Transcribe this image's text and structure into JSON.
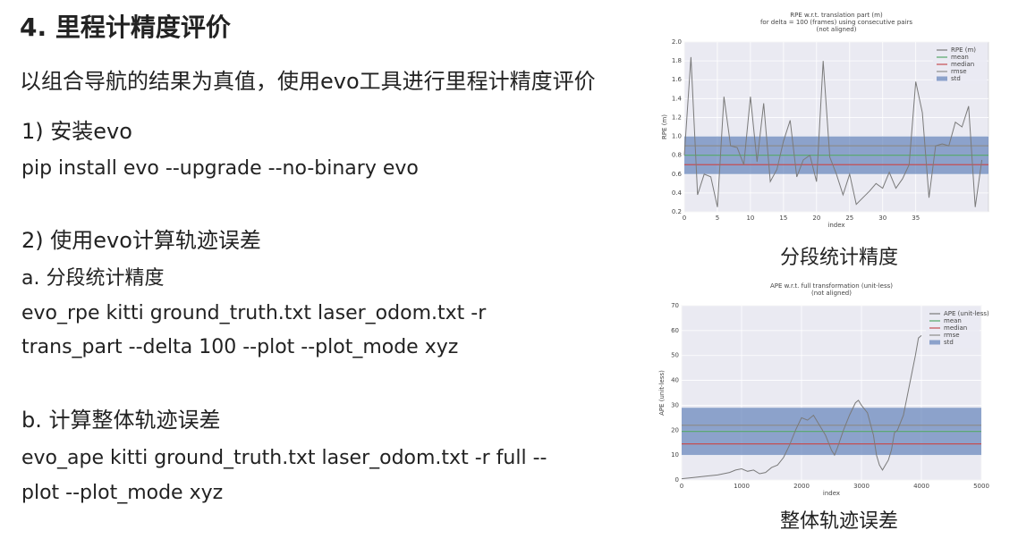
{
  "slide": {
    "title": "4. 里程计精度评价",
    "lines": [
      "以组合导航的结果为真值，使用evo工具进行里程计精度评价",
      "1) 安装evo",
      "pip install evo --upgrade --no-binary evo",
      "2) 使用evo计算轨迹误差",
      "a. 分段统计精度",
      "evo_rpe kitti ground_truth.txt laser_odom.txt -r",
      "trans_part --delta 100 --plot --plot_mode xyz",
      "b. 计算整体轨迹误差",
      "evo_ape kitti ground_truth.txt laser_odom.txt -r full --",
      "plot --plot_mode xyz"
    ],
    "captions": [
      "分段统计精度",
      "整体轨迹误差"
    ]
  },
  "chart_data": [
    {
      "type": "line",
      "title": [
        "RPE w.r.t. translation part (m)",
        "for delta = 100 (frames) using consecutive pairs",
        "(not aligned)"
      ],
      "xlabel": "index",
      "ylabel": "RPE (m)",
      "xlim": [
        0,
        46
      ],
      "xticks": [
        0,
        5,
        10,
        15,
        20,
        25,
        30,
        35
      ],
      "ylim": [
        0.2,
        2.0
      ],
      "yticks": [
        0.2,
        0.4,
        0.6,
        0.8,
        {
          "value": 1,
          "label": "1.0"
        },
        1.2,
        1.4,
        1.6,
        1.8,
        {
          "value": 2,
          "label": "2.0"
        }
      ],
      "grid": true,
      "series": [
        {
          "name": "RPE (m)",
          "color": "#7a7a7a",
          "x": [
            0,
            1,
            2,
            3,
            4,
            5,
            6,
            7,
            8,
            9,
            10,
            11,
            12,
            13,
            14,
            15,
            16,
            17,
            18,
            19,
            20,
            21,
            22,
            23,
            24,
            25,
            26,
            27,
            28,
            29,
            30,
            31,
            32,
            33,
            34,
            35,
            36,
            37,
            38,
            39,
            40,
            41,
            42,
            43,
            44,
            45
          ],
          "values": [
            0.8,
            1.84,
            0.38,
            0.6,
            0.57,
            0.25,
            1.42,
            0.9,
            0.88,
            0.7,
            1.42,
            0.73,
            1.35,
            0.52,
            0.65,
            0.95,
            1.17,
            0.57,
            0.75,
            0.8,
            0.52,
            1.8,
            0.78,
            0.6,
            0.38,
            0.6,
            0.28,
            0.35,
            0.42,
            0.5,
            0.45,
            0.62,
            0.45,
            0.55,
            0.7,
            1.58,
            1.25,
            0.35,
            0.9,
            0.92,
            0.9,
            1.15,
            1.1,
            1.32,
            0.25,
            0.75
          ]
        }
      ],
      "stats": [
        {
          "name": "mean",
          "color": "#55a868",
          "value": 0.8
        },
        {
          "name": "median",
          "color": "#c44e52",
          "value": 0.7
        },
        {
          "name": "rmse",
          "color": "#8c8c8c",
          "value": 0.9
        }
      ],
      "std": {
        "name": "std",
        "color": "#4c72b0",
        "value": 0.2
      }
    },
    {
      "type": "line",
      "title": [
        "APE w.r.t. full transformation (unit-less)",
        "(not aligned)"
      ],
      "xlabel": "index",
      "ylabel": "APE (unit-less)",
      "xlim": [
        0,
        5000
      ],
      "xticks": [
        0,
        1000,
        2000,
        3000,
        4000,
        5000
      ],
      "ylim": [
        0,
        70
      ],
      "yticks": [
        0,
        10,
        20,
        30,
        40,
        50,
        60,
        70
      ],
      "grid": true,
      "series": [
        {
          "name": "APE (unit-less)",
          "color": "#7a7a7a",
          "x": [
            0,
            200,
            400,
            600,
            800,
            900,
            1000,
            1100,
            1200,
            1300,
            1400,
            1500,
            1600,
            1700,
            1800,
            1900,
            2000,
            2100,
            2200,
            2300,
            2400,
            2500,
            2550,
            2600,
            2700,
            2800,
            2900,
            2950,
            3000,
            3100,
            3200,
            3250,
            3300,
            3350,
            3400,
            3450,
            3500,
            3550,
            3600,
            3700,
            3800,
            3900,
            3950,
            4000
          ],
          "values": [
            0.5,
            1,
            1.5,
            2,
            3,
            4,
            4.5,
            3.5,
            4,
            2.5,
            3,
            5,
            6,
            9,
            14,
            20,
            25,
            24,
            26,
            22,
            18,
            12,
            10,
            13,
            20,
            26,
            31,
            32,
            30,
            27,
            18,
            10,
            6,
            4,
            6,
            8,
            12,
            19,
            20,
            26,
            38,
            50,
            57,
            58
          ]
        }
      ],
      "stats": [
        {
          "name": "mean",
          "color": "#55a868",
          "value": 19.5
        },
        {
          "name": "median",
          "color": "#c44e52",
          "value": 14.5
        },
        {
          "name": "rmse",
          "color": "#8c8c8c",
          "value": 22
        }
      ],
      "std": {
        "name": "std",
        "color": "#4c72b0",
        "value": 9.5
      }
    }
  ]
}
